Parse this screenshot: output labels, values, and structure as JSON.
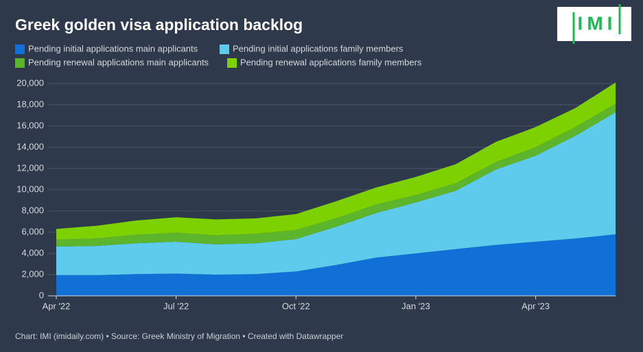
{
  "chart_data": {
    "type": "stacked-area",
    "title": "Greek golden visa application backlog",
    "logo": "IMI",
    "footer": "Chart: IMI (imidaily.com) • Source: Greek Ministry of Migration • Created with Datawrapper",
    "categories": [
      "Apr '22",
      null,
      null,
      "Jul '22",
      null,
      null,
      "Oct '22",
      null,
      null,
      "Jan '23",
      null,
      null,
      "Apr '23",
      null,
      null
    ],
    "series": [
      {
        "name": "Pending initial applications main applicants",
        "color": "#1170d6",
        "values": [
          1950,
          1950,
          2050,
          2100,
          2000,
          2050,
          2300,
          2900,
          3600,
          4000,
          4400,
          4800,
          5100,
          5400,
          5800
        ]
      },
      {
        "name": "Pending initial applications family members",
        "color": "#5ecbec",
        "values": [
          2700,
          2750,
          2900,
          3000,
          2850,
          2900,
          3050,
          3600,
          4200,
          4800,
          5500,
          7100,
          8100,
          9700,
          11500
        ]
      },
      {
        "name": "Pending renewal applications main applicants",
        "color": "#5db52b",
        "values": [
          650,
          700,
          800,
          850,
          850,
          900,
          850,
          800,
          800,
          700,
          700,
          700,
          800,
          800,
          800
        ]
      },
      {
        "name": "Pending renewal applications family members",
        "color": "#7ed100",
        "values": [
          1000,
          1200,
          1350,
          1450,
          1500,
          1450,
          1500,
          1600,
          1600,
          1700,
          1800,
          1900,
          1900,
          1800,
          2000
        ]
      }
    ],
    "ylim": [
      0,
      20000
    ],
    "yticks": [
      0,
      {
        "value": 2000,
        "label": "2,000"
      },
      {
        "value": 4000,
        "label": "4,000"
      },
      {
        "value": 6000,
        "label": "6,000"
      },
      {
        "value": 8000,
        "label": "8,000"
      },
      {
        "value": 10000,
        "label": "10,000"
      },
      {
        "value": 12000,
        "label": "12,000"
      },
      {
        "value": 14000,
        "label": "14,000"
      },
      {
        "value": 16000,
        "label": "16,000"
      },
      {
        "value": 18000,
        "label": "18,000"
      },
      {
        "value": 20000,
        "label": "20,000"
      }
    ],
    "grid": true
  }
}
